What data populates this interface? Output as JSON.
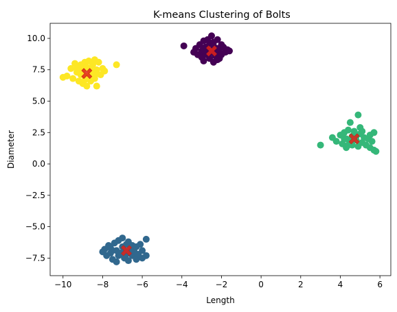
{
  "chart_data": {
    "type": "scatter",
    "title": "K-means Clustering of Bolts",
    "xlabel": "Length",
    "ylabel": "Diameter",
    "xlim": [
      -10.65,
      6.55
    ],
    "ylim": [
      -8.9,
      11.2
    ],
    "xticks": [
      -10,
      -8,
      -6,
      -4,
      -2,
      0,
      2,
      4,
      6
    ],
    "yticks": [
      -7.5,
      -5.0,
      -2.5,
      0.0,
      2.5,
      5.0,
      7.5,
      10.0
    ],
    "xtick_labels": [
      "−10",
      "−8",
      "−6",
      "−4",
      "−2",
      "0",
      "2",
      "4",
      "6"
    ],
    "ytick_labels": [
      "−7.5",
      "−5.0",
      "−2.5",
      "0.0",
      "2.5",
      "5.0",
      "7.5",
      "10.0"
    ],
    "grid": false,
    "clusters": [
      {
        "color": "#440154",
        "center": [
          -2.5,
          9.0
        ],
        "points": [
          [
            -3.9,
            9.4
          ],
          [
            -3.4,
            8.9
          ],
          [
            -3.3,
            9.2
          ],
          [
            -3.2,
            8.7
          ],
          [
            -3.1,
            9.5
          ],
          [
            -3.0,
            8.5
          ],
          [
            -3.0,
            9.0
          ],
          [
            -2.9,
            9.8
          ],
          [
            -2.9,
            8.2
          ],
          [
            -2.8,
            9.3
          ],
          [
            -2.8,
            8.7
          ],
          [
            -2.7,
            9.9
          ],
          [
            -2.7,
            9.1
          ],
          [
            -2.6,
            8.4
          ],
          [
            -2.6,
            9.6
          ],
          [
            -2.5,
            10.2
          ],
          [
            -2.5,
            8.9
          ],
          [
            -2.4,
            8.1
          ],
          [
            -2.4,
            9.4
          ],
          [
            -2.3,
            9.0
          ],
          [
            -2.3,
            8.6
          ],
          [
            -2.2,
            9.9
          ],
          [
            -2.2,
            9.2
          ],
          [
            -2.1,
            8.4
          ],
          [
            -2.1,
            8.9
          ],
          [
            -2.0,
            9.5
          ],
          [
            -2.0,
            8.7
          ],
          [
            -1.9,
            9.3
          ],
          [
            -1.8,
            8.9
          ],
          [
            -1.7,
            9.1
          ],
          [
            -1.6,
            9.0
          ],
          [
            -2.6,
            8.8
          ],
          [
            -2.9,
            9.1
          ],
          [
            -2.4,
            9.7
          ],
          [
            -2.2,
            8.3
          ]
        ]
      },
      {
        "color": "#31688e",
        "center": [
          -6.8,
          -6.9
        ],
        "points": [
          [
            -8.0,
            -7.0
          ],
          [
            -7.9,
            -6.8
          ],
          [
            -7.8,
            -7.3
          ],
          [
            -7.7,
            -6.5
          ],
          [
            -7.6,
            -7.1
          ],
          [
            -7.5,
            -6.9
          ],
          [
            -7.5,
            -7.6
          ],
          [
            -7.4,
            -6.3
          ],
          [
            -7.3,
            -7.8
          ],
          [
            -7.3,
            -6.9
          ],
          [
            -7.2,
            -7.3
          ],
          [
            -7.2,
            -6.1
          ],
          [
            -7.0,
            -5.9
          ],
          [
            -7.0,
            -6.6
          ],
          [
            -6.9,
            -7.5
          ],
          [
            -6.9,
            -6.9
          ],
          [
            -6.8,
            -7.2
          ],
          [
            -6.8,
            -6.4
          ],
          [
            -6.7,
            -6.2
          ],
          [
            -6.7,
            -7.7
          ],
          [
            -6.6,
            -6.8
          ],
          [
            -6.5,
            -7.3
          ],
          [
            -6.5,
            -6.5
          ],
          [
            -6.4,
            -7.0
          ],
          [
            -6.3,
            -7.6
          ],
          [
            -6.3,
            -6.6
          ],
          [
            -6.2,
            -7.2
          ],
          [
            -6.1,
            -6.4
          ],
          [
            -6.0,
            -6.9
          ],
          [
            -5.8,
            -7.3
          ],
          [
            -5.8,
            -6.0
          ],
          [
            -7.1,
            -7.1
          ],
          [
            -6.6,
            -6.9
          ],
          [
            -7.6,
            -6.7
          ],
          [
            -6.0,
            -7.5
          ]
        ]
      },
      {
        "color": "#35b779",
        "center": [
          4.7,
          2.0
        ],
        "points": [
          [
            3.0,
            1.5
          ],
          [
            3.6,
            2.1
          ],
          [
            3.8,
            1.8
          ],
          [
            4.0,
            2.3
          ],
          [
            4.1,
            1.6
          ],
          [
            4.2,
            2.5
          ],
          [
            4.3,
            2.0
          ],
          [
            4.3,
            1.3
          ],
          [
            4.4,
            2.7
          ],
          [
            4.5,
            1.8
          ],
          [
            4.5,
            3.3
          ],
          [
            4.6,
            2.2
          ],
          [
            4.6,
            1.5
          ],
          [
            4.7,
            2.6
          ],
          [
            4.8,
            1.9
          ],
          [
            4.8,
            2.2
          ],
          [
            4.9,
            3.9
          ],
          [
            4.9,
            1.4
          ],
          [
            5.0,
            2.4
          ],
          [
            5.0,
            2.9
          ],
          [
            5.1,
            1.7
          ],
          [
            5.2,
            2.1
          ],
          [
            5.3,
            1.5
          ],
          [
            5.4,
            2.0
          ],
          [
            5.5,
            2.3
          ],
          [
            5.5,
            1.3
          ],
          [
            5.6,
            1.8
          ],
          [
            5.7,
            2.5
          ],
          [
            5.7,
            1.1
          ],
          [
            5.8,
            1.0
          ],
          [
            4.2,
            2.0
          ],
          [
            4.4,
            1.5
          ],
          [
            5.1,
            2.6
          ],
          [
            4.6,
            1.9
          ]
        ]
      },
      {
        "color": "#fde725",
        "center": [
          -8.8,
          7.2
        ],
        "points": [
          [
            -10.0,
            6.9
          ],
          [
            -9.8,
            7.0
          ],
          [
            -9.6,
            7.6
          ],
          [
            -9.5,
            6.8
          ],
          [
            -9.4,
            8.0
          ],
          [
            -9.3,
            7.3
          ],
          [
            -9.3,
            7.6
          ],
          [
            -9.2,
            6.6
          ],
          [
            -9.1,
            7.9
          ],
          [
            -9.1,
            7.1
          ],
          [
            -9.0,
            6.4
          ],
          [
            -9.0,
            7.5
          ],
          [
            -8.9,
            8.1
          ],
          [
            -8.9,
            7.0
          ],
          [
            -8.8,
            6.2
          ],
          [
            -8.8,
            7.7
          ],
          [
            -8.7,
            6.9
          ],
          [
            -8.7,
            8.2
          ],
          [
            -8.6,
            7.3
          ],
          [
            -8.6,
            6.6
          ],
          [
            -8.5,
            7.9
          ],
          [
            -8.5,
            7.0
          ],
          [
            -8.4,
            8.3
          ],
          [
            -8.4,
            6.8
          ],
          [
            -8.3,
            6.2
          ],
          [
            -8.3,
            7.5
          ],
          [
            -8.2,
            8.1
          ],
          [
            -8.1,
            7.1
          ],
          [
            -8.0,
            7.6
          ],
          [
            -7.9,
            7.4
          ],
          [
            -7.3,
            7.9
          ],
          [
            -8.6,
            7.5
          ],
          [
            -9.2,
            7.3
          ],
          [
            -8.9,
            6.7
          ],
          [
            -8.3,
            7.2
          ]
        ]
      }
    ],
    "centroid_marker_color": "#e0231b"
  }
}
